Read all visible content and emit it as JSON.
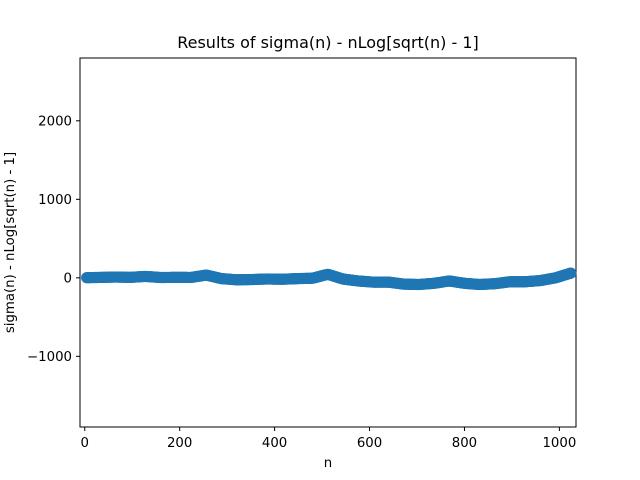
{
  "chart_data": {
    "type": "scatter",
    "title": "Results of sigma(n) - nLog[sqrt(n) - 1]",
    "xlabel": "n",
    "ylabel": "sigma(n) - nLog[sqrt(n) - 1]",
    "xlim": [
      -10,
      1035
    ],
    "ylim": [
      -1900,
      2800
    ],
    "x_ticks": [
      0,
      200,
      400,
      600,
      800,
      1000
    ],
    "y_ticks": [
      -1000,
      0,
      1000,
      2000
    ],
    "x_tick_labels": [
      "0",
      "200",
      "400",
      "600",
      "800",
      "1000"
    ],
    "y_tick_labels": [
      "−1000",
      "0",
      "1000",
      "2000"
    ],
    "grid": false,
    "series": [
      {
        "color": "#1f77b4",
        "marker": "circle",
        "x": [
          4,
          32,
          64,
          96,
          128,
          160,
          192,
          224,
          256,
          288,
          320,
          352,
          384,
          416,
          448,
          480,
          512,
          544,
          576,
          608,
          640,
          672,
          704,
          736,
          768,
          800,
          832,
          864,
          896,
          928,
          960,
          992,
          1024
        ],
        "y": [
          2,
          5,
          10,
          6,
          18,
          4,
          6,
          5,
          35,
          -10,
          -25,
          -22,
          -15,
          -18,
          -10,
          -5,
          45,
          -15,
          -40,
          -55,
          -55,
          -80,
          -85,
          -70,
          -40,
          -70,
          -85,
          -75,
          -50,
          -50,
          -35,
          0,
          60
        ]
      }
    ]
  }
}
